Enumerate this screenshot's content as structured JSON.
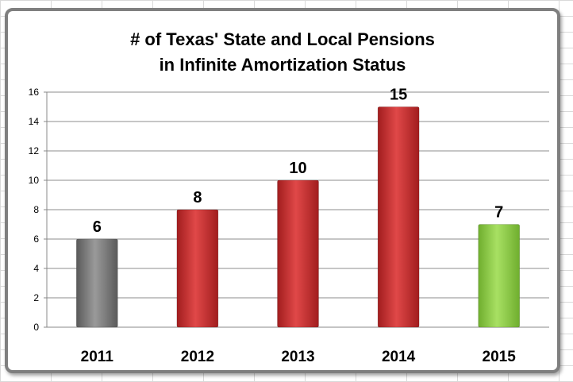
{
  "chart_data": {
    "type": "bar",
    "title_lines": [
      "# of Texas' State and Local Pensions",
      "in Infinite Amortization Status"
    ],
    "categories": [
      "2011",
      "2012",
      "2013",
      "2014",
      "2015"
    ],
    "values": [
      6,
      8,
      10,
      15,
      7
    ],
    "data_labels": [
      "6",
      "8",
      "10",
      "15",
      "7"
    ],
    "bar_colors": [
      "#808080",
      "#d9393a",
      "#d9393a",
      "#d9393a",
      "#92d050"
    ],
    "ylim": [
      0,
      16
    ],
    "yticks": [
      0,
      2,
      4,
      6,
      8,
      10,
      12,
      14,
      16
    ],
    "xlabel": "",
    "ylabel": "",
    "grid": true,
    "legend": "none"
  }
}
